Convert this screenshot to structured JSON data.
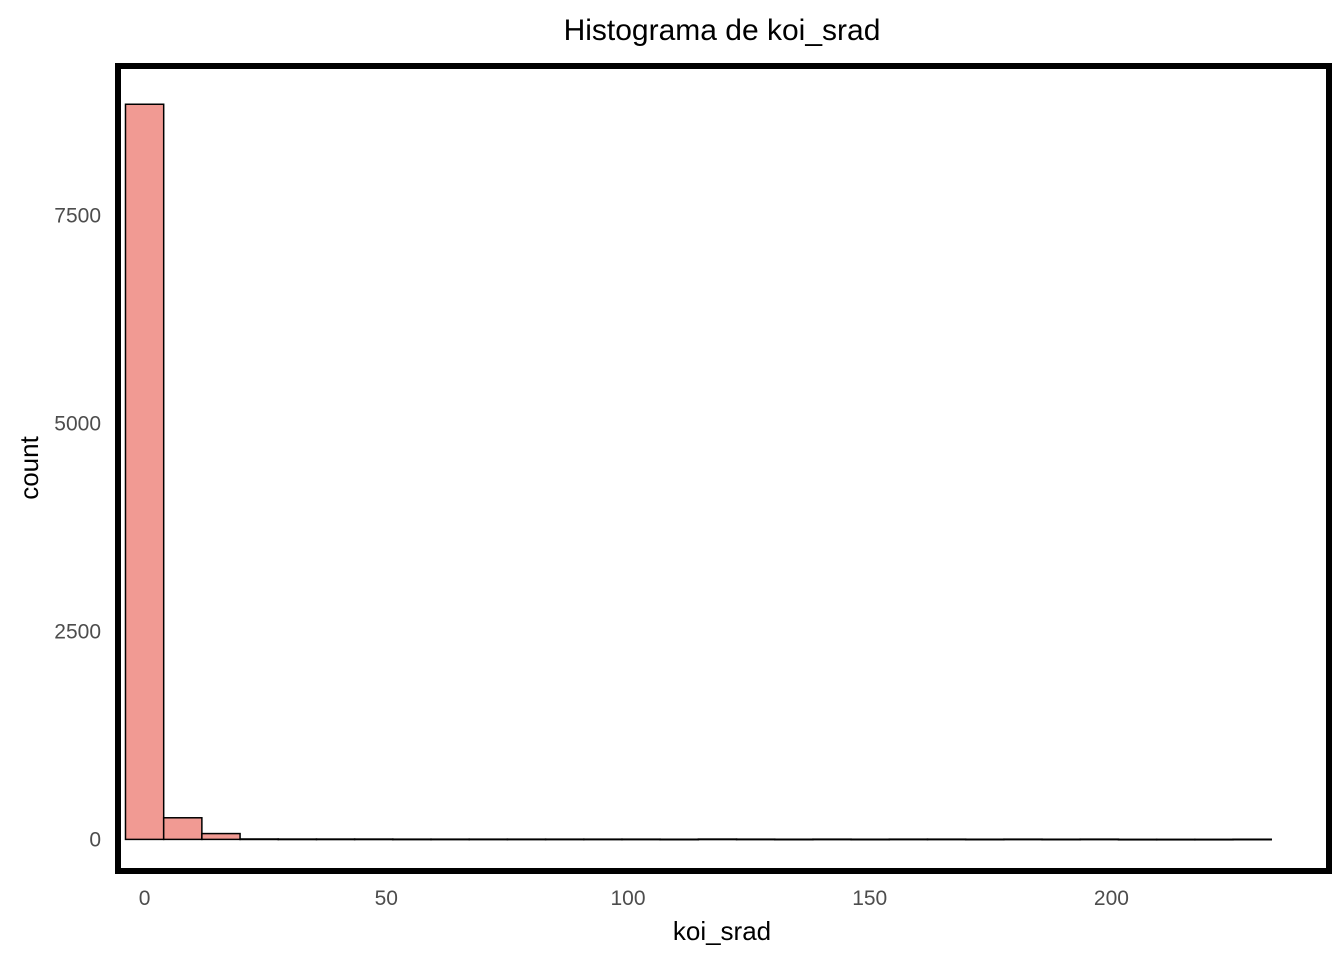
{
  "chart_data": {
    "type": "bar",
    "subtype": "histogram",
    "title": "Histograma de koi_srad",
    "xlabel": "koi_srad",
    "ylabel": "count",
    "bin_width": 7.9,
    "bin_start": -3.95,
    "bins": 30,
    "values": [
      8840,
      260,
      70,
      5,
      4,
      4,
      4,
      3,
      3,
      3,
      3,
      3,
      3,
      3,
      2,
      4,
      3,
      2,
      3,
      2,
      3,
      3,
      2,
      3,
      2,
      3,
      1,
      1,
      1,
      2
    ],
    "xlim": [
      -5.5,
      245
    ],
    "ylim": [
      -380,
      9300
    ],
    "x_ticks": [
      0,
      50,
      100,
      150,
      200
    ],
    "x_tick_labels": [
      "0",
      "50",
      "100",
      "150",
      "200"
    ],
    "y_ticks": [
      0,
      2500,
      5000,
      7500
    ],
    "y_tick_labels": [
      "0",
      "2500",
      "5000",
      "7500"
    ],
    "bar_fill": "#F19A93",
    "bar_outline": "#000000",
    "grid": false,
    "legend": "none",
    "panel_border": true
  }
}
